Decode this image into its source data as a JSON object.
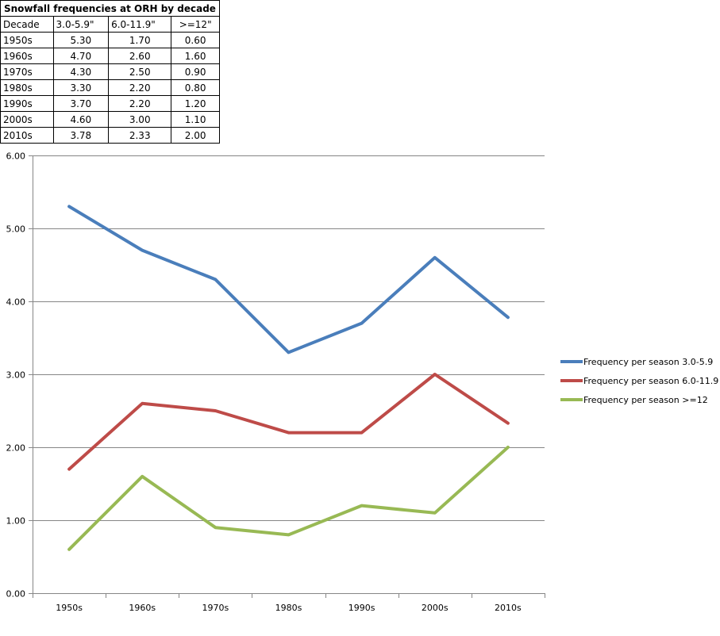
{
  "table": {
    "title": "Snowfall frequencies at ORH by decade",
    "headers": [
      "Decade",
      "3.0-5.9\"",
      "6.0-11.9\"",
      ">=12\""
    ],
    "rows": [
      [
        "1950s",
        "5.30",
        "1.70",
        "0.60"
      ],
      [
        "1960s",
        "4.70",
        "2.60",
        "1.60"
      ],
      [
        "1970s",
        "4.30",
        "2.50",
        "0.90"
      ],
      [
        "1980s",
        "3.30",
        "2.20",
        "0.80"
      ],
      [
        "1990s",
        "3.70",
        "2.20",
        "1.20"
      ],
      [
        "2000s",
        "4.60",
        "3.00",
        "1.10"
      ],
      [
        "2010s",
        "3.78",
        "2.33",
        "2.00"
      ]
    ]
  },
  "chart_data": {
    "type": "line",
    "categories": [
      "1950s",
      "1960s",
      "1970s",
      "1980s",
      "1990s",
      "2000s",
      "2010s"
    ],
    "series": [
      {
        "name": "Frequency per season 3.0-5.9",
        "color": "#4a7ebb",
        "values": [
          5.3,
          4.7,
          4.3,
          3.3,
          3.7,
          4.6,
          3.78
        ]
      },
      {
        "name": "Frequency per season 6.0-11.9",
        "color": "#be4b48",
        "values": [
          1.7,
          2.6,
          2.5,
          2.2,
          2.2,
          3.0,
          2.33
        ]
      },
      {
        "name": "Frequency per season >=12",
        "color": "#98b954",
        "values": [
          0.6,
          1.6,
          0.9,
          0.8,
          1.2,
          1.1,
          2.0
        ]
      }
    ],
    "yticks": [
      "0.00",
      "1.00",
      "2.00",
      "3.00",
      "4.00",
      "5.00",
      "6.00"
    ],
    "ylim": [
      0,
      6
    ],
    "grid": true,
    "legend": "right"
  }
}
